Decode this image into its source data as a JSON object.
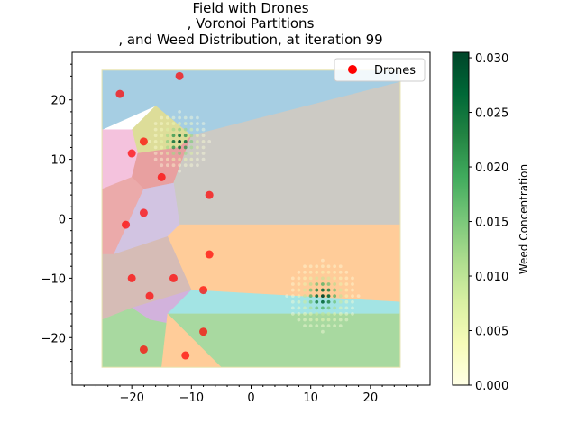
{
  "chart_data": {
    "type": "scatter",
    "title_lines": [
      "Field with Drones",
      ", Voronoi Partitions",
      ", and Weed Distribution, at iteration 99"
    ],
    "xlim": [
      -30,
      30
    ],
    "ylim": [
      -28,
      28
    ],
    "field_bounds": {
      "x": [
        -25,
        25
      ],
      "y": [
        -25,
        25
      ]
    },
    "x_ticks": [
      -20,
      -10,
      0,
      10,
      20
    ],
    "y_ticks": [
      -20,
      -10,
      0,
      10,
      20
    ],
    "xlabel": "",
    "ylabel": "",
    "grid": false,
    "legend": {
      "position": "top-right",
      "entries": [
        {
          "label": "Drones",
          "color": "#ff0000"
        }
      ]
    },
    "series": [
      {
        "name": "Drones",
        "color": "#ff0000",
        "points": [
          [
            -12,
            24
          ],
          [
            -22,
            21
          ],
          [
            -18,
            13
          ],
          [
            -20,
            11
          ],
          [
            -15,
            7
          ],
          [
            -7,
            4
          ],
          [
            -18,
            1
          ],
          [
            -21,
            -1
          ],
          [
            -7,
            -6
          ],
          [
            -20,
            -10
          ],
          [
            -13,
            -10
          ],
          [
            -8,
            -12
          ],
          [
            -17,
            -13
          ],
          [
            -8,
            -19
          ],
          [
            -18,
            -22
          ],
          [
            -11,
            -23
          ]
        ]
      }
    ],
    "voronoi_regions": [
      {
        "color": "#a6cee3",
        "polygon": [
          [
            -25,
            25
          ],
          [
            25,
            25
          ],
          [
            25,
            23
          ],
          [
            -10,
            14
          ],
          [
            -16,
            19
          ],
          [
            -25,
            15
          ]
        ]
      },
      {
        "color": "#dddd99",
        "polygon": [
          [
            -16,
            19
          ],
          [
            -10,
            14
          ],
          [
            -12,
            12
          ],
          [
            -19,
            11
          ],
          [
            -20,
            15
          ]
        ]
      },
      {
        "color": "#f4c2dd",
        "polygon": [
          [
            -25,
            15
          ],
          [
            -20,
            15
          ],
          [
            -19,
            11
          ],
          [
            -20,
            7
          ],
          [
            -25,
            5
          ]
        ]
      },
      {
        "color": "#e8a0a0",
        "polygon": [
          [
            -20,
            7
          ],
          [
            -19,
            11
          ],
          [
            -12,
            12
          ],
          [
            -10,
            14
          ],
          [
            -13,
            6
          ],
          [
            -18,
            5
          ]
        ]
      },
      {
        "color": "#cccac4",
        "polygon": [
          [
            -10,
            14
          ],
          [
            25,
            23
          ],
          [
            25,
            -1
          ],
          [
            -12,
            -1
          ],
          [
            -13,
            6
          ]
        ]
      },
      {
        "color": "#ebaaaa",
        "polygon": [
          [
            -25,
            5
          ],
          [
            -20,
            7
          ],
          [
            -18,
            5
          ],
          [
            -23,
            -6
          ],
          [
            -25,
            -6
          ]
        ]
      },
      {
        "color": "#d2c4e2",
        "polygon": [
          [
            -18,
            5
          ],
          [
            -13,
            6
          ],
          [
            -12,
            -1
          ],
          [
            -14,
            -3
          ],
          [
            -23,
            -6
          ]
        ]
      },
      {
        "color": "#ffcc99",
        "polygon": [
          [
            -12,
            -1
          ],
          [
            25,
            -1
          ],
          [
            25,
            -14
          ],
          [
            -10,
            -12
          ],
          [
            -14,
            -3
          ]
        ]
      },
      {
        "color": "#d6bcb6",
        "polygon": [
          [
            -25,
            -6
          ],
          [
            -23,
            -6
          ],
          [
            -14,
            -3
          ],
          [
            -10,
            -12
          ],
          [
            -20,
            -15
          ],
          [
            -25,
            -17
          ]
        ]
      },
      {
        "color": "#d2b2dc",
        "polygon": [
          [
            -20,
            -15
          ],
          [
            -10,
            -12
          ],
          [
            -12,
            -18
          ],
          [
            -17,
            -17
          ]
        ]
      },
      {
        "color": "#a3e4e4",
        "polygon": [
          [
            -10,
            -12
          ],
          [
            25,
            -14
          ],
          [
            25,
            -16
          ],
          [
            -14,
            -16
          ]
        ]
      },
      {
        "color": "#a8d9a0",
        "polygon": [
          [
            -25,
            -17
          ],
          [
            -20,
            -15
          ],
          [
            -17,
            -17
          ],
          [
            -12,
            -18
          ],
          [
            -14,
            -16
          ],
          [
            25,
            -16
          ],
          [
            25,
            -25
          ],
          [
            -15,
            -25
          ],
          [
            -25,
            -25
          ]
        ]
      },
      {
        "color": "#ffcc99",
        "polygon": [
          [
            -15,
            -25
          ],
          [
            -5,
            -25
          ],
          [
            -12,
            -18
          ],
          [
            -14,
            -16
          ]
        ]
      }
    ],
    "weed_hotspots": [
      {
        "center": [
          -12,
          13
        ],
        "radius": 5
      },
      {
        "center": [
          12,
          -13
        ],
        "radius": 6
      }
    ],
    "colorbar": {
      "label": "Weed Concentration",
      "min": 0.0,
      "max": 0.0305,
      "ticks": [
        "0.000",
        "0.005",
        "0.010",
        "0.015",
        "0.020",
        "0.025",
        "0.030"
      ],
      "tick_values": [
        0.0,
        0.005,
        0.01,
        0.015,
        0.02,
        0.025,
        0.03
      ],
      "colormap": [
        "#ffffe5",
        "#f7fcb9",
        "#d9f0a3",
        "#addd8e",
        "#78c679",
        "#41ab5d",
        "#238443",
        "#006837",
        "#004529"
      ]
    }
  }
}
